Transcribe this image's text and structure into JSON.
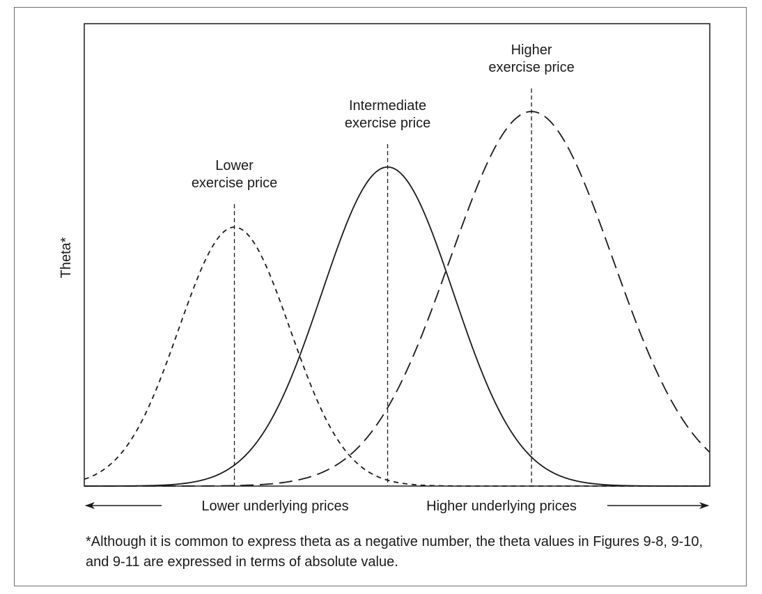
{
  "chart_data": {
    "type": "line",
    "title": "",
    "ylabel": "Theta*",
    "xlabel_left": "Lower underlying prices",
    "xlabel_right": "Higher underlying prices",
    "xlim": [
      0,
      100
    ],
    "ylim": [
      0,
      100
    ],
    "grid": false,
    "legend": "none",
    "series": [
      {
        "key": "lower",
        "name": "Lower exercise price",
        "label_lines": [
          "Lower",
          "exercise price"
        ],
        "dash": "short-dash",
        "peak_x": 24,
        "peak_y": 56,
        "spread": 8.9
      },
      {
        "key": "intermediate",
        "name": "Intermediate exercise price",
        "label_lines": [
          "Intermediate",
          "exercise price"
        ],
        "dash": "solid",
        "peak_x": 48.5,
        "peak_y": 69,
        "spread": 10.5
      },
      {
        "key": "higher",
        "name": "Higher exercise price",
        "label_lines": [
          "Higher",
          "exercise price"
        ],
        "dash": "long-dash",
        "peak_x": 71.5,
        "peak_y": 81,
        "spread": 13
      }
    ]
  },
  "footnote": "*Although it is common to express theta as a negative number, the theta values in Figures 9-8, 9-10, and 9-11 are expressed in terms of absolute value."
}
